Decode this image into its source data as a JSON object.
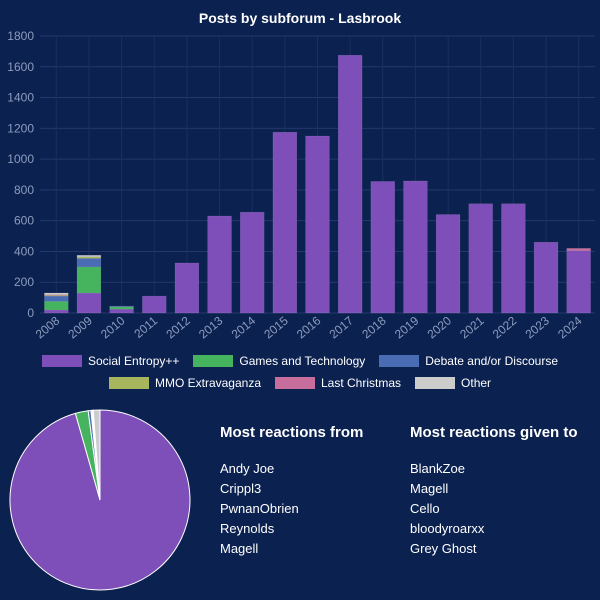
{
  "chart_data": {
    "type": "bar",
    "stacked": true,
    "title": "Posts by subforum - Lasbrook",
    "xlabel": "",
    "ylabel": "",
    "ylim": [
      0,
      1800
    ],
    "yticks": [
      0,
      200,
      400,
      600,
      800,
      1000,
      1200,
      1400,
      1600,
      1800
    ],
    "categories": [
      "2008",
      "2009",
      "2010",
      "2011",
      "2012",
      "2013",
      "2014",
      "2015",
      "2016",
      "2017",
      "2018",
      "2019",
      "2020",
      "2021",
      "2022",
      "2023",
      "2024"
    ],
    "series": [
      {
        "name": "Social Entropy++",
        "color": "#7e4fb8",
        "values": [
          20,
          130,
          25,
          110,
          325,
          630,
          655,
          1175,
          1150,
          1675,
          855,
          858,
          640,
          710,
          710,
          460,
          405
        ]
      },
      {
        "name": "Games and Technology",
        "color": "#46b35f",
        "values": [
          55,
          170,
          15,
          0,
          0,
          0,
          0,
          0,
          0,
          0,
          0,
          0,
          0,
          0,
          0,
          0,
          0
        ]
      },
      {
        "name": "Debate and/or Discourse",
        "color": "#4a6cb5",
        "values": [
          35,
          55,
          5,
          0,
          0,
          0,
          0,
          0,
          0,
          0,
          0,
          0,
          0,
          0,
          0,
          0,
          0
        ]
      },
      {
        "name": "MMO Extravaganza",
        "color": "#a7b55c",
        "values": [
          5,
          10,
          0,
          0,
          0,
          0,
          0,
          0,
          0,
          0,
          0,
          0,
          0,
          0,
          0,
          0,
          0
        ]
      },
      {
        "name": "Last Christmas",
        "color": "#c76e9c",
        "values": [
          5,
          0,
          0,
          0,
          0,
          0,
          0,
          0,
          0,
          0,
          0,
          0,
          0,
          0,
          0,
          0,
          15
        ]
      },
      {
        "name": "Other",
        "color": "#cccccc",
        "values": [
          10,
          10,
          0,
          0,
          0,
          0,
          0,
          0,
          0,
          0,
          0,
          0,
          0,
          0,
          0,
          0,
          0
        ]
      }
    ],
    "legend_position": "bottom",
    "pie": {
      "type": "pie",
      "labels": [
        "Social Entropy++",
        "Games and Technology",
        "Debate and/or Discourse",
        "MMO Extravaganza",
        "Last Christmas",
        "Other"
      ],
      "values": [
        95.6,
        2.3,
        0.5,
        0.2,
        0.2,
        1.2
      ]
    }
  },
  "reactions_from": {
    "heading": "Most reactions from",
    "names": [
      "Andy Joe",
      "Crippl3",
      "PwnanObrien",
      "Reynolds",
      "Magell"
    ]
  },
  "reactions_given": {
    "heading": "Most reactions given to",
    "names": [
      "BlankZoe",
      "Magell",
      "Cello",
      "bloodyroarxx",
      "Grey Ghost"
    ]
  }
}
